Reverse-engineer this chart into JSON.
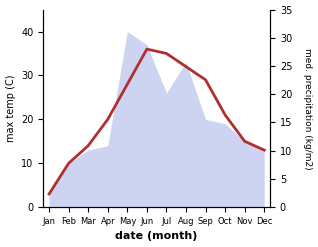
{
  "months": [
    "Jan",
    "Feb",
    "Mar",
    "Apr",
    "May",
    "Jun",
    "Jul",
    "Aug",
    "Sep",
    "Oct",
    "Nov",
    "Dec"
  ],
  "temperature": [
    3,
    10,
    14,
    20,
    28,
    36,
    35,
    32,
    29,
    21,
    15,
    13
  ],
  "precipitation": [
    3,
    10,
    13,
    14,
    40,
    37,
    26,
    33,
    20,
    19,
    15,
    13
  ],
  "temp_color": "#b03030",
  "precip_fill_color": "#c5cdf0",
  "precip_fill_alpha": 0.85,
  "temp_ylim": [
    0,
    45
  ],
  "precip_ylim": [
    0,
    35
  ],
  "left_yticks": [
    0,
    10,
    20,
    30,
    40
  ],
  "right_yticks": [
    0,
    5,
    10,
    15,
    20,
    25,
    30,
    35
  ],
  "xlabel": "date (month)",
  "ylabel_left": "max temp (C)",
  "ylabel_right": "med. precipitation (kg/m2)"
}
